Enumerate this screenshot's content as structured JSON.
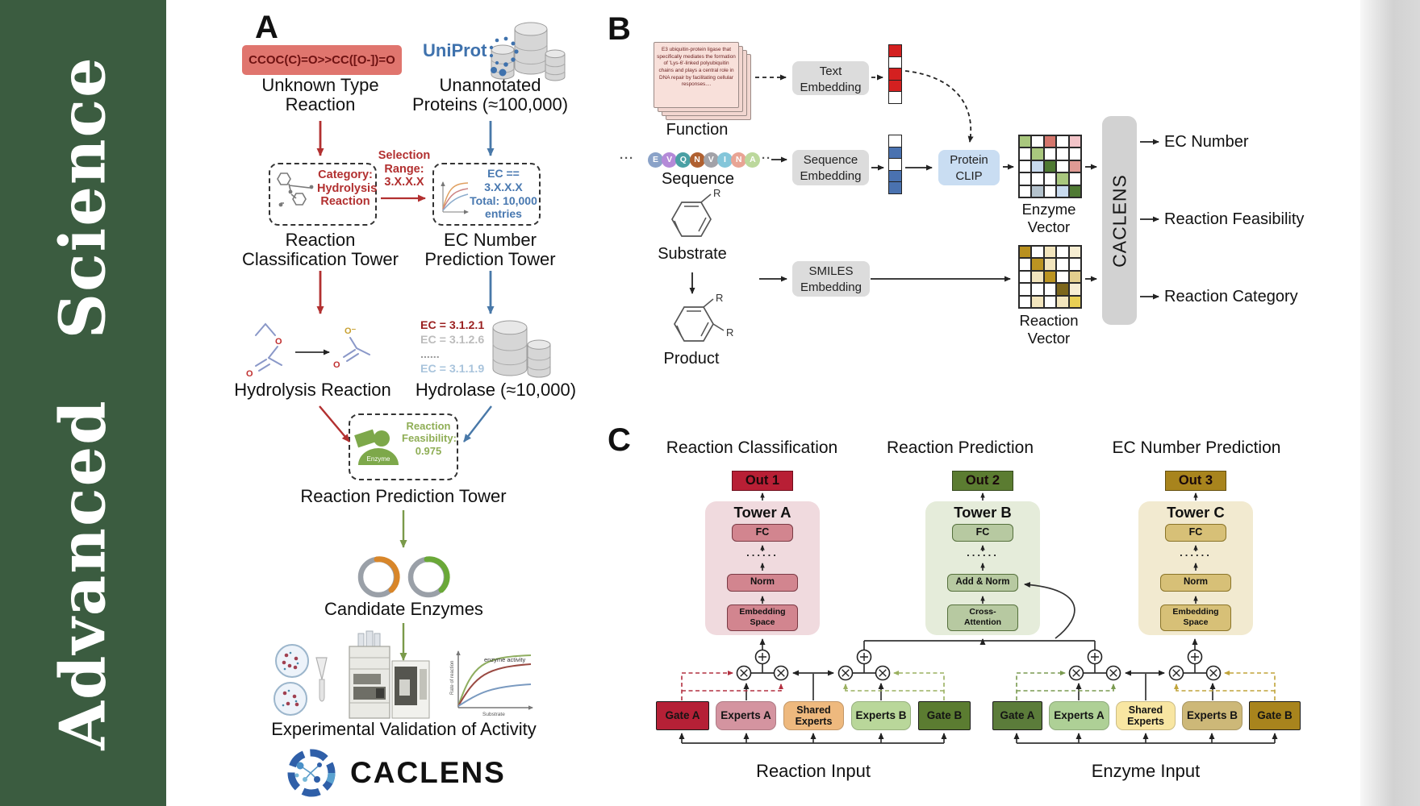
{
  "journal": {
    "name": "Advanced Science",
    "bar_color": "#3b5c40"
  },
  "panelA": {
    "label": "A",
    "smiles": "CCOC(C)=O>>CC([O-])=O",
    "unknown_label": "Unknown Type\nReaction",
    "uniprot": "UniProt",
    "unannotated_label": "Unannotated\nProteins (≈100,000)",
    "selection_label": "Selection\nRange:\n3.X.X.X",
    "category_box": "Category:\nHydrolysis\nReaction",
    "ec_box": "EC == 3.X.X.X\nTotal: 10,000\nentries",
    "classification_tower_label": "Reaction\nClassification Tower",
    "ec_tower_label": "EC Number\nPrediction Tower",
    "hydrolysis_label": "Hydrolysis Reaction",
    "ec_list": [
      {
        "text": "EC = 3.1.2.1",
        "color": "#9a1f1f"
      },
      {
        "text": "EC = 3.1.2.6",
        "color": "#bcbcbc"
      },
      {
        "text": "......",
        "color": "#9a9a9a"
      },
      {
        "text": "EC = 3.1.1.9",
        "color": "#a9c4dc"
      }
    ],
    "hydrolase_label": "Hydrolase (≈10,000)",
    "enzyme_icon_label": "Enzyme",
    "feasibility_label": "Reaction\nFeasibility:\n0.975",
    "prediction_tower_label": "Reaction Prediction Tower",
    "candidate_label": "Candidate Enzymes",
    "validation_label": "Experimental Validation of Activity",
    "activity_plot": {
      "ylabel": "Rate of reaction",
      "xlabel": "Substrate",
      "annotation": "enzyme activity"
    },
    "molecule_atoms": {
      "o": "O",
      "o_minus": "O⁻"
    },
    "brand": "CACLENS"
  },
  "panelB": {
    "label": "B",
    "function_card": "E3 ubiquitin-protein ligase that specifically mediates the formation of 'Lys-6'-linked polyubiquitin chains and plays a central role in DNA repair by facilitating cellular responses....",
    "function_label": "Function",
    "sequence_label": "Sequence",
    "sequence_ellipsis": "···",
    "sequence_letters": [
      {
        "ch": "E",
        "color": "#8aa2c8"
      },
      {
        "ch": "V",
        "color": "#b48ad8"
      },
      {
        "ch": "Q",
        "color": "#4aa0a4"
      },
      {
        "ch": "N",
        "color": "#b06030"
      },
      {
        "ch": "V",
        "color": "#a2a2a8"
      },
      {
        "ch": "I",
        "color": "#84c6da"
      },
      {
        "ch": "N",
        "color": "#e8a494"
      },
      {
        "ch": "A",
        "color": "#bcd89c"
      }
    ],
    "substrate_label": "Substrate",
    "product_label": "Product",
    "r_label": "R",
    "text_embedding": "Text\nEmbedding",
    "sequence_embedding": "Sequence\nEmbedding",
    "smiles_embedding": "SMILES\nEmbedding",
    "protein_clip": "Protein\nCLIP",
    "caclens_bar": "CACLENS",
    "enzyme_vector_label": "Enzyme Vector",
    "reaction_vector_label": "Reaction Vector",
    "outputs": [
      "EC Number",
      "Reaction Feasibility",
      "Reaction Category"
    ],
    "text_vector_cells": [
      "#d42020",
      "#ffffff",
      "#d42020",
      "#d42020",
      "#ffffff"
    ],
    "sequence_vector_cells": [
      "#ffffff",
      "#4a72b0",
      "#ffffff",
      "#4a72b0",
      "#4a72b0"
    ],
    "enzyme_matrix": [
      [
        "#a9c77e",
        "#ffffff",
        "#d4766c",
        "#ffffff",
        "#f2c4c8"
      ],
      [
        "#ffffff",
        "#a9c77e",
        "#ffffff",
        "#ffffff",
        "#ffffff"
      ],
      [
        "#ffffff",
        "#c8daee",
        "#4f7a33",
        "#ffffff",
        "#df9a94"
      ],
      [
        "#ffffff",
        "#ffffff",
        "#ffffff",
        "#a9c77e",
        "#ffffff"
      ],
      [
        "#ffffff",
        "#b4c2cc",
        "#ffffff",
        "#c8daee",
        "#4f7a33"
      ]
    ],
    "reaction_matrix": [
      [
        "#b8901f",
        "#ffffff",
        "#f2e5bd",
        "#ffffff",
        "#f6edd2"
      ],
      [
        "#ffffff",
        "#bb9422",
        "#f2e5bd",
        "#ffffff",
        "#ffffff"
      ],
      [
        "#ffffff",
        "#f2e5bd",
        "#bb9422",
        "#ffffff",
        "#e3cf8e"
      ],
      [
        "#ffffff",
        "#ffffff",
        "#ffffff",
        "#7c661c",
        "#f6edd2"
      ],
      [
        "#ffffff",
        "#f2e5bd",
        "#ffffff",
        "#f2e5bd",
        "#e8cf55"
      ]
    ]
  },
  "panelC": {
    "label": "C",
    "towers": [
      {
        "header": "Reaction Classification",
        "out": "Out 1",
        "title": "Tower A",
        "layers": [
          "FC",
          "......",
          "Norm",
          "Embedding\nSpace"
        ],
        "bg": "#f0dade",
        "box_fill": "#d2858f",
        "box_border": "#7a3a44",
        "out_fill": "#b81f35",
        "out_border": "#6e0e1c"
      },
      {
        "header": "Reaction Prediction",
        "out": "Out 2",
        "title": "Tower B",
        "layers": [
          "FC",
          "......",
          "Add & Norm",
          "Cross-\nAttention"
        ],
        "bg": "#e5ecda",
        "box_fill": "#b7c9a1",
        "box_border": "#55703c",
        "out_fill": "#5b7c31",
        "out_border": "#35491c"
      },
      {
        "header": "EC Number Prediction",
        "out": "Out 3",
        "title": "Tower C",
        "layers": [
          "FC",
          "......",
          "Norm",
          "Embedding\nSpace"
        ],
        "bg": "#f2ead0",
        "box_fill": "#d7c077",
        "box_border": "#8a7428",
        "out_fill": "#a8841d",
        "out_border": "#64500e"
      }
    ],
    "groups": [
      {
        "label": "Reaction Input",
        "boxes": [
          {
            "text": "Gate A",
            "fill": "#b52036",
            "kind": "gate"
          },
          {
            "text": "Experts A",
            "fill": "#d494a0",
            "kind": "expert"
          },
          {
            "text": "Shared\nExperts",
            "fill": "#eeb97e",
            "kind": "expert"
          },
          {
            "text": "Experts B",
            "fill": "#b9d79a",
            "kind": "expert"
          },
          {
            "text": "Gate B",
            "fill": "#5b7c31",
            "kind": "gate"
          }
        ]
      },
      {
        "label": "Enzyme Input",
        "boxes": [
          {
            "text": "Gate A",
            "fill": "#5b7c3a",
            "kind": "gate"
          },
          {
            "text": "Experts A",
            "fill": "#aed096",
            "kind": "expert"
          },
          {
            "text": "Shared\nExperts",
            "fill": "#f8e6a2",
            "kind": "expert"
          },
          {
            "text": "Experts B",
            "fill": "#cdb878",
            "kind": "expert"
          },
          {
            "text": "Gate B",
            "fill": "#a8841d",
            "kind": "gate"
          }
        ]
      }
    ]
  }
}
